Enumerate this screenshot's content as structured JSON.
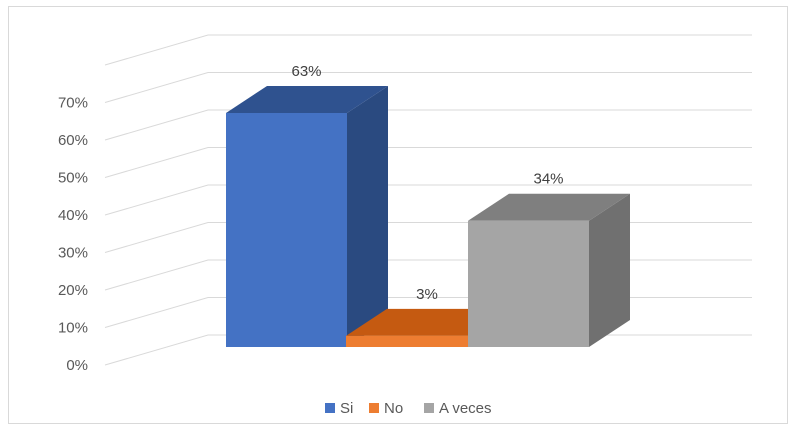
{
  "chart_data": {
    "type": "bar",
    "three_d": true,
    "categories": [
      "Si",
      "No",
      "A veces"
    ],
    "values": [
      63,
      3,
      34
    ],
    "value_labels": [
      "63%",
      "3%",
      "34%"
    ],
    "ylim": [
      0,
      70
    ],
    "y_ticks": [
      "0%",
      "10%",
      "20%",
      "30%",
      "40%",
      "50%",
      "60%",
      "70%"
    ],
    "grid": true,
    "legend": "bottom",
    "colors": {
      "Si": {
        "front": "#4472C4",
        "top": "#2F528F",
        "side": "#2A4A80"
      },
      "No": {
        "front": "#ED7D31",
        "top": "#C55A11",
        "side": "#B45310"
      },
      "A veces": {
        "front": "#A5A5A5",
        "top": "#7F7F7F",
        "side": "#707070"
      }
    },
    "grid_color": "#D9D9D9"
  }
}
